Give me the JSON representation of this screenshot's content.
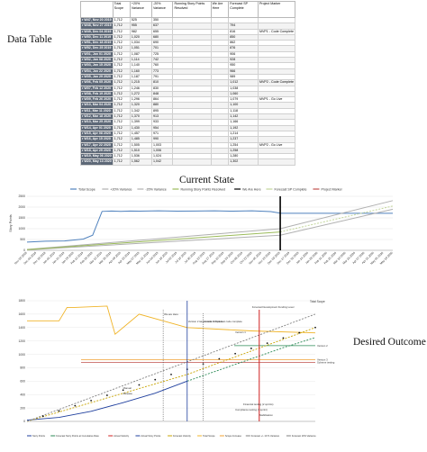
{
  "headings": {
    "data_table": "Data Table",
    "current_state": "Current State",
    "desired_outcome": "Desired Outcome"
  },
  "table": {
    "columns": [
      "",
      "Total Scope",
      "+20% Variance",
      "-20% Variance",
      "Running Story Points Resolved",
      "We Are Here",
      "Forecast SP Complete",
      "Project Marker"
    ],
    "rows": [
      [
        "r W47, Nov 20 2019",
        "1,712",
        "525",
        "350",
        "",
        "",
        "",
        ""
      ],
      [
        "r W48, Nov 27 2019",
        "1,712",
        "955",
        "637",
        "",
        "",
        "794",
        ""
      ],
      [
        "r W49, Dec 04 2019",
        "1,712",
        "982",
        "655",
        "",
        "",
        "816",
        "MVP1 - Code Complete"
      ],
      [
        "r W50, Dec 11 2019",
        "1,712",
        "1,020",
        "680",
        "",
        "",
        "850",
        ""
      ],
      [
        "r W51, Dec 18 2019",
        "1,712",
        "1,034",
        "690",
        "",
        "",
        "862",
        ""
      ],
      [
        "r W52, Dec 25 2019",
        "1,712",
        "1,051",
        "701",
        "",
        "",
        "876",
        ""
      ],
      [
        "r W01, Jan 01 2020",
        "1,712",
        "1,087",
        "725",
        "",
        "",
        "906",
        ""
      ],
      [
        "r W02, Jan 08 2020",
        "1,712",
        "1,114",
        "742",
        "",
        "",
        "928",
        ""
      ],
      [
        "r W03, Jan 15 2020",
        "1,712",
        "1,140",
        "760",
        "",
        "",
        "950",
        ""
      ],
      [
        "r W04, Jan 22 2020",
        "1,712",
        "1,160",
        "773",
        "",
        "",
        "966",
        ""
      ],
      [
        "r W05, Jan 29 2020",
        "1,712",
        "1,187",
        "791",
        "",
        "",
        "989",
        ""
      ],
      [
        "r W06, Feb 05 2020",
        "1,712",
        "1,215",
        "810",
        "",
        "",
        "1,012",
        "MVP2 - Code Complete"
      ],
      [
        "r W07, Feb 12 2020",
        "1,712",
        "1,246",
        "830",
        "",
        "",
        "1,038",
        ""
      ],
      [
        "r W08, Feb 19 2020",
        "1,712",
        "1,272",
        "848",
        "",
        "",
        "1,060",
        ""
      ],
      [
        "r W09, Feb 26 2020",
        "1,712",
        "1,296",
        "864",
        "",
        "",
        "1,079",
        "MVP1 - Go Live"
      ],
      [
        "r W10, Mar 04 2020",
        "1,712",
        "1,320",
        "880",
        "",
        "",
        "1,100",
        ""
      ],
      [
        "r W11, Mar 11 2020",
        "1,712",
        "1,342",
        "895",
        "",
        "",
        "1,118",
        ""
      ],
      [
        "r W12, Mar 18 2020",
        "1,712",
        "1,370",
        "913",
        "",
        "",
        "1,142",
        ""
      ],
      [
        "r W13, Mar 25 2020",
        "1,712",
        "1,399",
        "933",
        "",
        "",
        "1,166",
        ""
      ],
      [
        "r W14, Apr 01 2020",
        "1,712",
        "1,430",
        "954",
        "",
        "",
        "1,192",
        ""
      ],
      [
        "r W15, Apr 08 2020",
        "1,712",
        "1,457",
        "971",
        "",
        "",
        "1,214",
        ""
      ],
      [
        "r W16, Apr 15 2020",
        "1,712",
        "1,485",
        "990",
        "",
        "",
        "1,237",
        ""
      ],
      [
        "r W17, Apr 22 2020",
        "1,712",
        "1,505",
        "1,003",
        "",
        "",
        "1,254",
        "MVP2 - Go Live"
      ],
      [
        "r W18, Apr 29 2020",
        "1,712",
        "1,510",
        "1,006",
        "",
        "",
        "1,258",
        ""
      ],
      [
        "r W19, May 06 2020",
        "1,712",
        "1,536",
        "1,024",
        "",
        "",
        "1,280",
        ""
      ],
      [
        "r W20, May 13 2020",
        "1,712",
        "1,562",
        "1,042",
        "",
        "",
        "1,302",
        ""
      ]
    ]
  },
  "chart_data": [
    {
      "type": "line",
      "legend": [
        "Total Scope",
        "+20% Variance",
        "-20% Variance",
        "Running Story Points Resolved",
        "We Are Here",
        "Forecast SP Complete",
        "Project Marker"
      ],
      "legend_position": "top",
      "ylabel": "Story Points",
      "yticks": [
        0,
        500,
        1000,
        1500,
        2000,
        2500
      ],
      "ylim": [
        0,
        2500
      ],
      "xticks": [
        "Nov 20 2018",
        "Dec 04 2018",
        "Dec 18 2018",
        "Jan 01 2019",
        "Jan 15 2019",
        "Jan 29 2019",
        "Feb 12 2019",
        "Feb 26 2019",
        "Mar 12 2019",
        "Mar 26 2019",
        "Apr 09 2019",
        "Apr 23 2019",
        "May 07 2019",
        "May 21 2019",
        "Jun 04 2019",
        "Jun 18 2019",
        "Jul 02 2019",
        "Jul 16 2019",
        "Jul 30 2019",
        "Aug 13 2019",
        "Aug 27 2019",
        "Sep 10 2019",
        "Sep 24 2019",
        "Oct 08 2019",
        "Oct 22 2019",
        "Nov 05 2019",
        "Nov 19 2019",
        "Dec 03 2019",
        "Dec 17 2019",
        "Dec 31 2019",
        "Jan 14 2020",
        "Jan 28 2020",
        "Feb 11 2020",
        "Feb 25 2020",
        "Mar 10 2020",
        "Mar 24 2020",
        "Apr 07 2020",
        "Apr 21 2020",
        "May 05 2020",
        "May 19 2020"
      ],
      "series": [
        {
          "name": "Total Scope",
          "color": "#4f81bd",
          "x_index": [
            0,
            2,
            4,
            6,
            7,
            8,
            9,
            10,
            11,
            12,
            14,
            16,
            18,
            20,
            22,
            24,
            26,
            27
          ],
          "values": [
            380,
            420,
            430,
            520,
            700,
            1800,
            1820,
            1800,
            1820,
            1810,
            1830,
            1810,
            1820,
            1830,
            1810,
            1830,
            1790,
            1720
          ]
        },
        {
          "name": "Total Scope (flat)",
          "color": "#4f81bd",
          "x_index": [
            27,
            39
          ],
          "values": [
            1712,
            1712
          ]
        },
        {
          "name": "+20% Variance",
          "color": "#b0b0b0",
          "x_index": [
            0,
            27,
            39
          ],
          "values": [
            40,
            1000,
            2300
          ]
        },
        {
          "name": "-20% Variance",
          "color": "#b0b0b0",
          "x_index": [
            0,
            27,
            39
          ],
          "values": [
            20,
            700,
            1900
          ]
        },
        {
          "name": "Running Story Points Resolved",
          "color": "#9bbb59",
          "x_index": [
            0,
            27
          ],
          "values": [
            30,
            850
          ]
        },
        {
          "name": "Forecast SP Complete",
          "color": "#c3d69b",
          "x_index": [
            27,
            39
          ],
          "values": [
            850,
            2050
          ]
        }
      ],
      "we_are_here_index": 27
    },
    {
      "type": "line",
      "legend": [
        "Story Points",
        "Forecast Story Points at Cumulative Rate",
        "Actual Velocity",
        "Actual Story Points",
        "Forecast Velocity",
        "Total Scope",
        "Scope Increase",
        "Forecast +/- 10 % Variance",
        "Forecast 10% Variance"
      ],
      "yticks": [
        0,
        200,
        400,
        600,
        800,
        1000,
        1200,
        1400,
        1600,
        1800
      ],
      "ylim": [
        0,
        1800
      ],
      "annotations": [
        "Total Scope",
        "Version 1 target code complete",
        "We are Here",
        "Version 2 target code complete",
        "Version 3 Forecast code complete",
        "Forecast Development Funding Level",
        "Version 1",
        "Version 2",
        "Version 3",
        "Scheme testing (1 sprints)",
        "Financial testing (2 sprints)",
        "Compliance testing (1 sprint)",
        "Stabilisation",
        "Manual",
        "Release"
      ],
      "series": [
        {
          "name": "Total Scope",
          "color": "#f0b429",
          "x_index": [
            0,
            4,
            5,
            6,
            10,
            11,
            14,
            20,
            28,
            36
          ],
          "values": [
            1500,
            1500,
            1700,
            1700,
            1720,
            1300,
            1600,
            1400,
            1350,
            1320
          ]
        },
        {
          "name": "Actual Story Points",
          "color": "#1f3f9e",
          "x_index": [
            0,
            4,
            8,
            12,
            16,
            20
          ],
          "values": [
            20,
            60,
            150,
            280,
            420,
            600
          ]
        },
        {
          "name": "Forecast Story Points at Cumulative Rate",
          "color": "#2a8a55",
          "x_index": [
            20,
            26,
            32,
            36
          ],
          "values": [
            600,
            850,
            1100,
            1250
          ]
        },
        {
          "name": "Forecast Velocity",
          "color": "#c8a400",
          "x_index": [
            0,
            20,
            36
          ],
          "values": [
            0,
            700,
            1400
          ]
        },
        {
          "name": "Forecast +/- 10 % Variance",
          "color": "#808080",
          "x_index": [
            0,
            36
          ],
          "values": [
            0,
            1600
          ]
        }
      ],
      "markers": {
        "we_are_here": 20,
        "red_line": 29
      }
    }
  ]
}
